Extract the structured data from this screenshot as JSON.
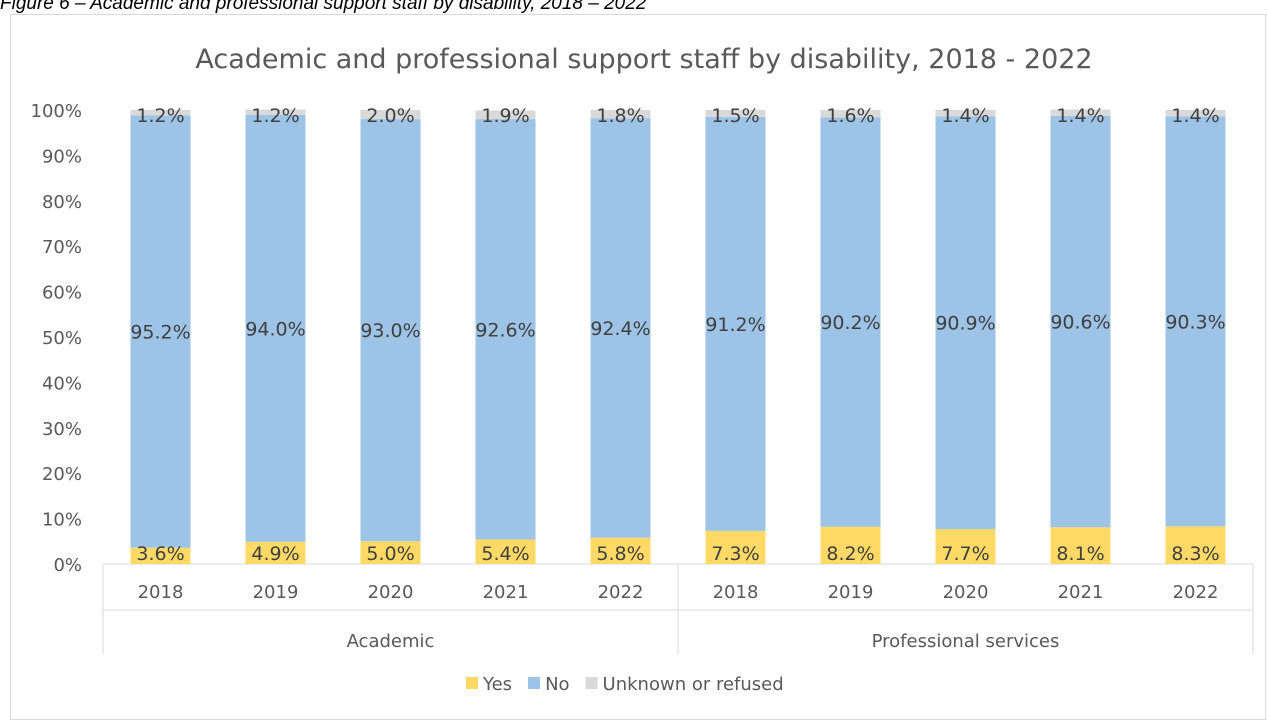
{
  "figure": {
    "caption": "Figure 6 – Academic and professional support staff by disability, 2018 – 2022"
  },
  "chart_data": {
    "type": "bar",
    "stacked": "percent",
    "title": "Academic and professional support staff by disability, 2018 - 2022",
    "xlabel": "",
    "ylabel": "",
    "ylim": [
      0,
      100
    ],
    "yticks": [
      "0%",
      "10%",
      "20%",
      "30%",
      "40%",
      "50%",
      "60%",
      "70%",
      "80%",
      "90%",
      "100%"
    ],
    "grid": false,
    "legend_position": "bottom",
    "groups": [
      {
        "label": "Academic",
        "categories": [
          "2018",
          "2019",
          "2020",
          "2021",
          "2022"
        ]
      },
      {
        "label": "Professional services",
        "categories": [
          "2018",
          "2019",
          "2020",
          "2021",
          "2022"
        ]
      }
    ],
    "series": [
      {
        "name": "Yes",
        "color": "#ffd966",
        "values": [
          3.6,
          4.9,
          5.0,
          5.4,
          5.8,
          7.3,
          8.2,
          7.7,
          8.1,
          8.3
        ],
        "labels": [
          "3.6%",
          "4.9%",
          "5.0%",
          "5.4%",
          "5.8%",
          "7.3%",
          "8.2%",
          "7.7%",
          "8.1%",
          "8.3%"
        ]
      },
      {
        "name": "No",
        "color": "#9dc3e6",
        "values": [
          95.2,
          94.0,
          93.0,
          92.6,
          92.4,
          91.2,
          90.2,
          90.9,
          90.6,
          90.3
        ],
        "labels": [
          "95.2%",
          "94.0%",
          "93.0%",
          "92.6%",
          "92.4%",
          "91.2%",
          "90.2%",
          "90.9%",
          "90.6%",
          "90.3%"
        ]
      },
      {
        "name": "Unknown or refused",
        "color": "#d9d9d9",
        "values": [
          1.2,
          1.2,
          2.0,
          1.9,
          1.8,
          1.5,
          1.6,
          1.4,
          1.4,
          1.4
        ],
        "labels": [
          "1.2%",
          "1.2%",
          "2.0%",
          "1.9%",
          "1.8%",
          "1.5%",
          "1.6%",
          "1.4%",
          "1.4%",
          "1.4%"
        ]
      }
    ]
  }
}
